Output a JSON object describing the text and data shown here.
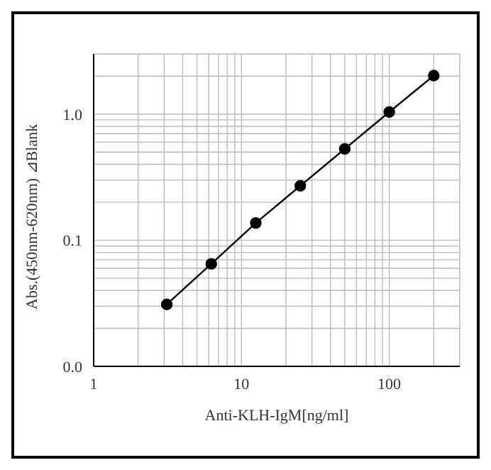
{
  "chart_data": {
    "type": "line",
    "xlabel": "Anti-KLH-IgM[ng/ml]",
    "ylabel": "Abs.(450nm-620nm) ⊿Blank",
    "log": "xy",
    "grid": true,
    "marker": "circle",
    "line_style": "solid",
    "legend": false,
    "x": [
      3.125,
      6.25,
      12.5,
      25,
      50,
      100,
      200
    ],
    "series": [
      {
        "color": "#000000",
        "values": [
          0.031,
          0.065,
          0.137,
          0.27,
          0.53,
          1.04,
          2.02
        ]
      }
    ],
    "xlim": [
      1,
      300
    ],
    "xticks": [
      1,
      {
        "value": 2,
        "label": null
      },
      {
        "value": 3,
        "label": null
      },
      {
        "value": 4,
        "label": null
      },
      {
        "value": 5,
        "label": null
      },
      {
        "value": 6,
        "label": null
      },
      {
        "value": 7,
        "label": null
      },
      {
        "value": 8,
        "label": null
      },
      {
        "value": 9,
        "label": null
      },
      10,
      {
        "value": 20,
        "label": null
      },
      {
        "value": 30,
        "label": null
      },
      {
        "value": 40,
        "label": null
      },
      {
        "value": 50,
        "label": null
      },
      {
        "value": 60,
        "label": null
      },
      {
        "value": 70,
        "label": null
      },
      {
        "value": 80,
        "label": null
      },
      {
        "value": 90,
        "label": null
      },
      100,
      {
        "value": 200,
        "label": null
      },
      {
        "value": 300,
        "label": null
      }
    ],
    "ylim": [
      0.01,
      3
    ],
    "yticks": [
      {
        "value": 0.01,
        "label": "0.0"
      },
      {
        "value": 0.02,
        "label": null
      },
      {
        "value": 0.03,
        "label": null
      },
      {
        "value": 0.04,
        "label": null
      },
      {
        "value": 0.05,
        "label": null
      },
      {
        "value": 0.06,
        "label": null
      },
      {
        "value": 0.07,
        "label": null
      },
      {
        "value": 0.08,
        "label": null
      },
      {
        "value": 0.09,
        "label": null
      },
      0.1,
      {
        "value": 0.2,
        "label": null
      },
      {
        "value": 0.3,
        "label": null
      },
      {
        "value": 0.4,
        "label": null
      },
      {
        "value": 0.5,
        "label": null
      },
      {
        "value": 0.6,
        "label": null
      },
      {
        "value": 0.7,
        "label": null
      },
      {
        "value": 0.8,
        "label": null
      },
      {
        "value": 0.9,
        "label": null
      },
      {
        "value": 1,
        "label": "1.0"
      },
      {
        "value": 2,
        "label": null
      },
      {
        "value": 3,
        "label": null
      }
    ]
  }
}
